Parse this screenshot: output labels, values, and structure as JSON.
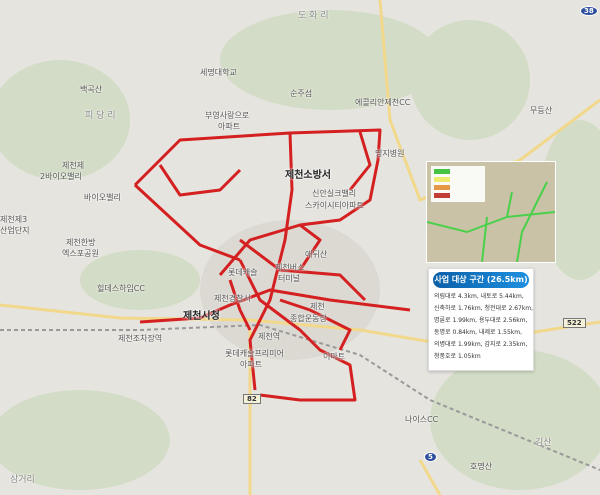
{
  "colors": {
    "route": "#d42020",
    "land": "#e6e4df",
    "green": "#cfdcc0",
    "info_title": "#0b5fa8"
  },
  "labels": {
    "dohwari": "도 화 리",
    "semyung": "세명대학교",
    "sunjuseom": "순주섬",
    "ecolian": "에콜리안제천CC",
    "mudeungsan": "무등산",
    "baekgoksan": "백곡산",
    "pidangri": "피 당 리",
    "buyoung1": "부영사랑으로",
    "buyoung2": "아파트",
    "myongji": "명지병원",
    "firestation": "제천소방서",
    "bio2a": "제천제",
    "bio2b": "2바이오밸리",
    "bio": "바이오밸리",
    "ind3a": "제천제3",
    "ind3b": "산업단지",
    "sinan1": "신안실크밸리",
    "sinan2": "스카이시티아파트",
    "expo1": "제천한방",
    "expo2": "엑스포공원",
    "aedwisan": "애뒤산",
    "lotte": "롯데캐슬",
    "terminal1": "제천버스",
    "terminal2": "터미널",
    "hildes": "힐데스하임CC",
    "police": "제천경찰서",
    "cityhall": "제천시청",
    "stadium1": "제천",
    "stadium2": "종합운동장",
    "yard": "제천조차장역",
    "station": "제천역",
    "premier1": "롯데캐슬프리미어",
    "premier2": "아파트",
    "emart": "이마트",
    "nice": "나이스CC",
    "homyeong": "호명산",
    "gimsan": "김산",
    "samgeori": "삼거리"
  },
  "road_badges": {
    "r38": "38",
    "r522": "522",
    "r82": "82",
    "r5": "5"
  },
  "legend_colors": [
    "#39c43a",
    "#f5ee6a",
    "#e7933a",
    "#c0302a"
  ],
  "info_box": {
    "title": "사업 대상 구간 (26.5km)",
    "lines": [
      "의림대로 4.3km, 내토로 5.44km,",
      "신축하로 1.76km, 청전대로 2.67km,",
      "명륜로 1.99km, 용두대로 2.56km,",
      "동명로 0.84km, 내제로 1.55km,",
      "의병대로 1.99km, 감지로 2.35km,",
      "청풍호로 1.05km"
    ]
  }
}
